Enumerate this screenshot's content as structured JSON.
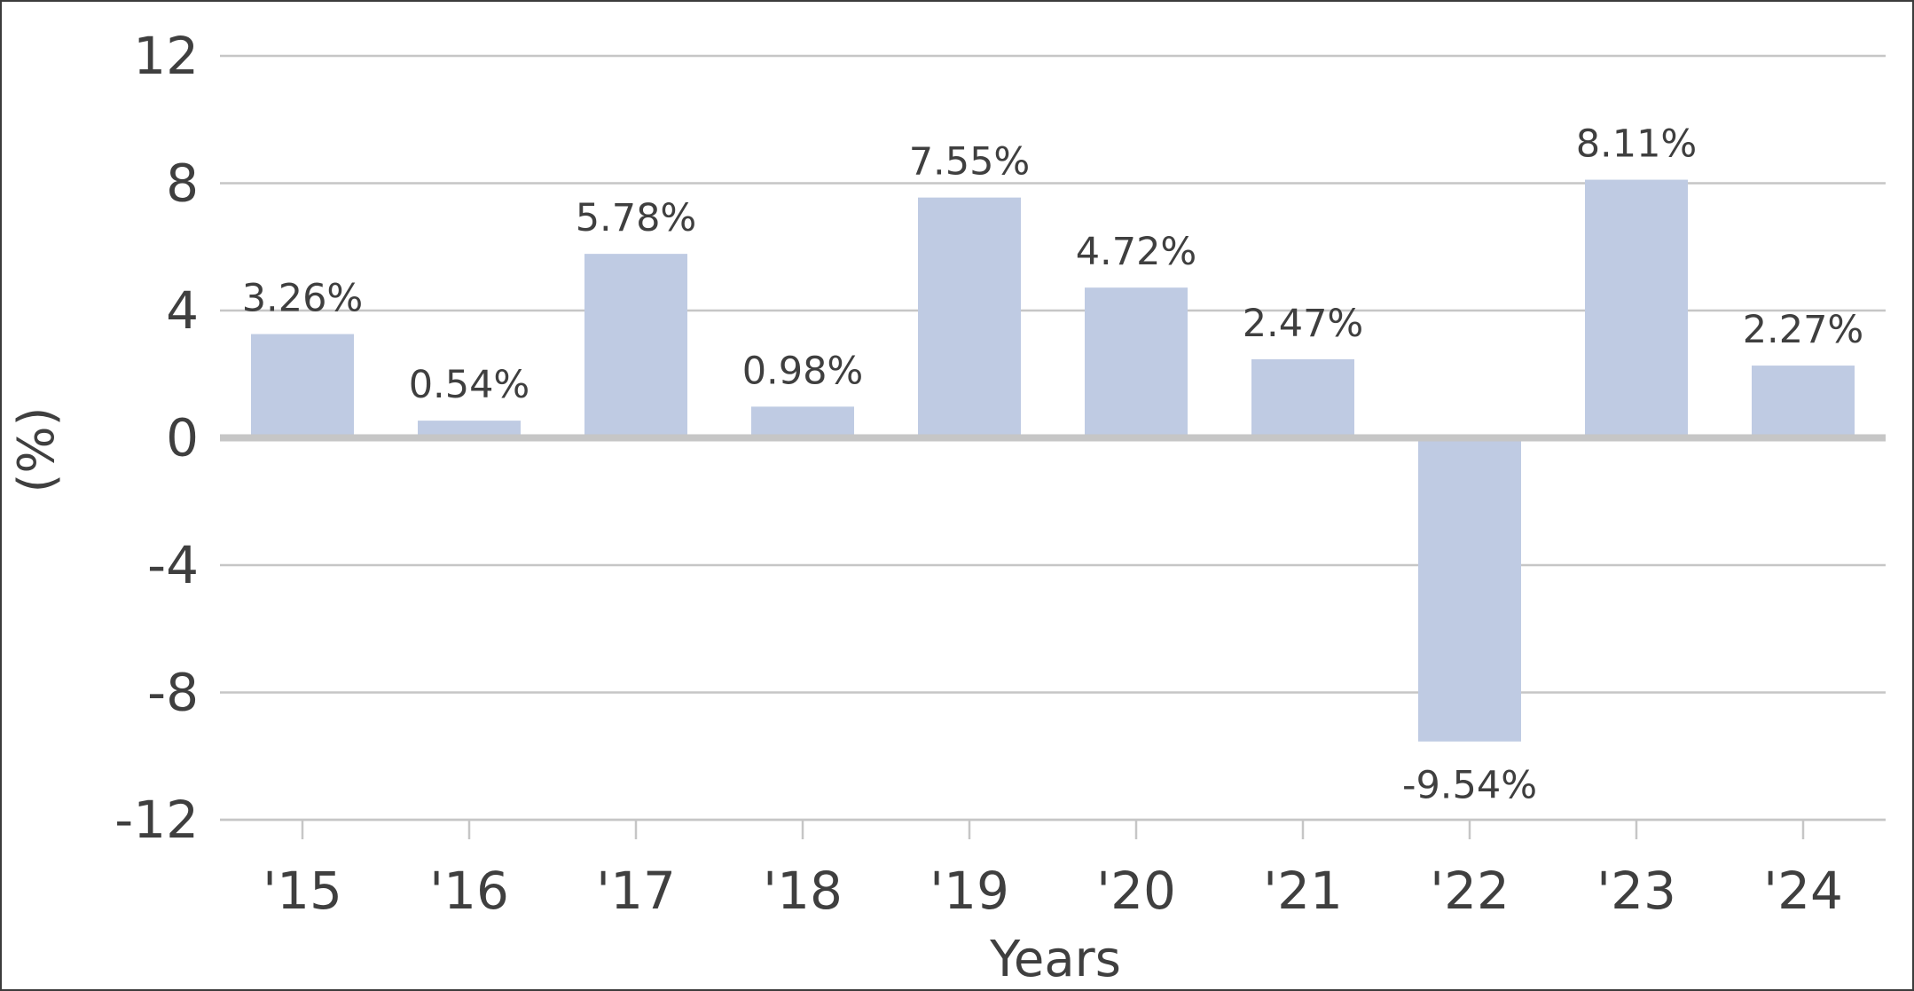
{
  "chart_data": {
    "type": "bar",
    "categories": [
      "'15",
      "'16",
      "'17",
      "'18",
      "'19",
      "'20",
      "'21",
      "'22",
      "'23",
      "'24"
    ],
    "values": [
      3.26,
      0.54,
      5.78,
      0.98,
      7.55,
      4.72,
      2.47,
      -9.54,
      8.11,
      2.27
    ],
    "data_labels": [
      "3.26%",
      "0.54%",
      "5.78%",
      "0.98%",
      "7.55%",
      "4.72%",
      "2.47%",
      "-9.54%",
      "8.11%",
      "2.27%"
    ],
    "title": "",
    "xlabel": "Years",
    "ylabel": "(%)",
    "ylim": [
      -12,
      12
    ],
    "y_ticks": [
      12,
      8,
      4,
      0,
      -4,
      -8,
      -12
    ],
    "y_tick_labels": [
      "12",
      "8",
      "4",
      "0",
      "-4",
      "-8",
      "-12"
    ],
    "grid": true,
    "legend": "none",
    "colors": {
      "bar": "#bfcbe3",
      "gridline": "#c6c6c6",
      "text": "#3f3f3f",
      "frame": "#3c3c3c"
    }
  }
}
